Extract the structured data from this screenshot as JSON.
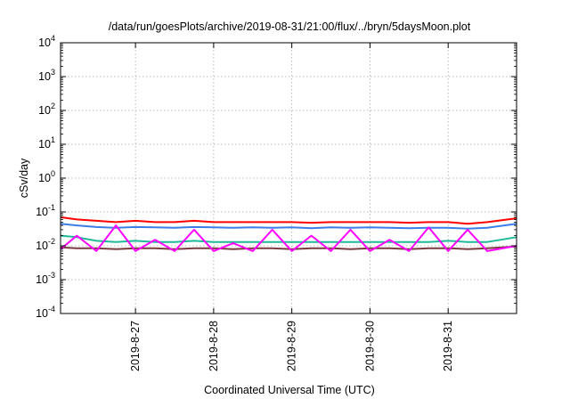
{
  "chart_data": {
    "type": "line",
    "title": "/data/run/goesPlots/archive/2019-08-31/21:00/flux/../bryn/5daysMoon.plot",
    "xlabel": "Coordinated Universal Time (UTC)",
    "ylabel": "cSv/day",
    "y_scale": "log",
    "ylim": [
      0.0001,
      10000
    ],
    "y_ticks": [
      {
        "value": 0.0001,
        "base": "10",
        "exp": "-4"
      },
      {
        "value": 0.001,
        "base": "10",
        "exp": "-3"
      },
      {
        "value": 0.01,
        "base": "10",
        "exp": "-2"
      },
      {
        "value": 0.1,
        "base": "10",
        "exp": "-1"
      },
      {
        "value": 1,
        "base": "10",
        "exp": "0"
      },
      {
        "value": 10,
        "base": "10",
        "exp": "1"
      },
      {
        "value": 100,
        "base": "10",
        "exp": "2"
      },
      {
        "value": 1000,
        "base": "10",
        "exp": "3"
      },
      {
        "value": 10000,
        "base": "10",
        "exp": "4"
      }
    ],
    "xlim": [
      "2019-08-26T01:00",
      "2019-08-31T21:00"
    ],
    "x_ticks": [
      "2019-8-27",
      "2019-8-28",
      "2019-8-29",
      "2019-8-30",
      "2019-8-31"
    ],
    "x_tick_values": [
      "2019-08-27",
      "2019-08-28",
      "2019-08-29",
      "2019-08-30",
      "2019-08-31"
    ],
    "grid": true,
    "legend": "none",
    "series": [
      {
        "color": "#ff0000",
        "times": [
          "2019-08-26T01:00",
          "2019-08-26T06:00",
          "2019-08-26T12:00",
          "2019-08-26T18:00",
          "2019-08-27T00:00",
          "2019-08-27T06:00",
          "2019-08-27T12:00",
          "2019-08-27T18:00",
          "2019-08-28T00:00",
          "2019-08-28T06:00",
          "2019-08-28T12:00",
          "2019-08-28T18:00",
          "2019-08-29T00:00",
          "2019-08-29T06:00",
          "2019-08-29T12:00",
          "2019-08-29T18:00",
          "2019-08-30T00:00",
          "2019-08-30T06:00",
          "2019-08-30T12:00",
          "2019-08-30T18:00",
          "2019-08-31T00:00",
          "2019-08-31T06:00",
          "2019-08-31T12:00",
          "2019-08-31T21:00"
        ],
        "values": [
          0.07,
          0.06,
          0.055,
          0.05,
          0.055,
          0.05,
          0.05,
          0.055,
          0.05,
          0.05,
          0.05,
          0.05,
          0.05,
          0.048,
          0.05,
          0.05,
          0.05,
          0.05,
          0.048,
          0.05,
          0.05,
          0.045,
          0.05,
          0.065
        ]
      },
      {
        "color": "#3b7ee8",
        "times": [
          "2019-08-26T01:00",
          "2019-08-26T06:00",
          "2019-08-26T12:00",
          "2019-08-26T18:00",
          "2019-08-27T00:00",
          "2019-08-27T06:00",
          "2019-08-27T12:00",
          "2019-08-27T18:00",
          "2019-08-28T00:00",
          "2019-08-28T06:00",
          "2019-08-28T12:00",
          "2019-08-28T18:00",
          "2019-08-29T00:00",
          "2019-08-29T06:00",
          "2019-08-29T12:00",
          "2019-08-29T18:00",
          "2019-08-30T00:00",
          "2019-08-30T06:00",
          "2019-08-30T12:00",
          "2019-08-30T18:00",
          "2019-08-31T00:00",
          "2019-08-31T06:00",
          "2019-08-31T12:00",
          "2019-08-31T21:00"
        ],
        "values": [
          0.045,
          0.04,
          0.036,
          0.034,
          0.036,
          0.035,
          0.034,
          0.036,
          0.035,
          0.034,
          0.035,
          0.034,
          0.035,
          0.033,
          0.035,
          0.034,
          0.035,
          0.034,
          0.033,
          0.034,
          0.034,
          0.032,
          0.034,
          0.045
        ]
      },
      {
        "color": "#1fb99a",
        "times": [
          "2019-08-26T01:00",
          "2019-08-26T06:00",
          "2019-08-26T12:00",
          "2019-08-26T18:00",
          "2019-08-27T00:00",
          "2019-08-27T06:00",
          "2019-08-27T12:00",
          "2019-08-27T18:00",
          "2019-08-28T00:00",
          "2019-08-28T06:00",
          "2019-08-28T12:00",
          "2019-08-28T18:00",
          "2019-08-29T00:00",
          "2019-08-29T06:00",
          "2019-08-29T12:00",
          "2019-08-29T18:00",
          "2019-08-30T00:00",
          "2019-08-30T06:00",
          "2019-08-30T12:00",
          "2019-08-30T18:00",
          "2019-08-31T00:00",
          "2019-08-31T06:00",
          "2019-08-31T12:00",
          "2019-08-31T21:00"
        ],
        "values": [
          0.02,
          0.018,
          0.014,
          0.013,
          0.014,
          0.013,
          0.013,
          0.014,
          0.013,
          0.013,
          0.013,
          0.013,
          0.013,
          0.013,
          0.013,
          0.013,
          0.013,
          0.013,
          0.013,
          0.013,
          0.014,
          0.013,
          0.013,
          0.018
        ]
      },
      {
        "color": "#7a3b40",
        "times": [
          "2019-08-26T01:00",
          "2019-08-26T06:00",
          "2019-08-26T12:00",
          "2019-08-26T18:00",
          "2019-08-27T00:00",
          "2019-08-27T06:00",
          "2019-08-27T12:00",
          "2019-08-27T18:00",
          "2019-08-28T00:00",
          "2019-08-28T06:00",
          "2019-08-28T12:00",
          "2019-08-28T18:00",
          "2019-08-29T00:00",
          "2019-08-29T06:00",
          "2019-08-29T12:00",
          "2019-08-29T18:00",
          "2019-08-30T00:00",
          "2019-08-30T06:00",
          "2019-08-30T12:00",
          "2019-08-30T18:00",
          "2019-08-31T00:00",
          "2019-08-31T06:00",
          "2019-08-31T12:00",
          "2019-08-31T21:00"
        ],
        "values": [
          0.009,
          0.0085,
          0.0085,
          0.008,
          0.0085,
          0.0085,
          0.008,
          0.0085,
          0.0085,
          0.008,
          0.0085,
          0.0085,
          0.008,
          0.0085,
          0.0085,
          0.008,
          0.0085,
          0.0085,
          0.008,
          0.0085,
          0.0085,
          0.008,
          0.0085,
          0.0095
        ]
      },
      {
        "color": "#ff00ff",
        "times": [
          "2019-08-26T01:00",
          "2019-08-26T06:00",
          "2019-08-26T12:00",
          "2019-08-26T18:00",
          "2019-08-27T00:00",
          "2019-08-27T06:00",
          "2019-08-27T12:00",
          "2019-08-27T18:00",
          "2019-08-28T00:00",
          "2019-08-28T06:00",
          "2019-08-28T12:00",
          "2019-08-28T18:00",
          "2019-08-29T00:00",
          "2019-08-29T06:00",
          "2019-08-29T12:00",
          "2019-08-29T18:00",
          "2019-08-30T00:00",
          "2019-08-30T06:00",
          "2019-08-30T12:00",
          "2019-08-30T18:00",
          "2019-08-31T00:00",
          "2019-08-31T06:00",
          "2019-08-31T12:00",
          "2019-08-31T21:00"
        ],
        "values": [
          0.008,
          0.02,
          0.007,
          0.04,
          0.007,
          0.015,
          0.007,
          0.03,
          0.007,
          0.012,
          0.007,
          0.03,
          0.007,
          0.02,
          0.007,
          0.03,
          0.007,
          0.015,
          0.007,
          0.035,
          0.007,
          0.03,
          0.007,
          0.01
        ]
      }
    ]
  }
}
